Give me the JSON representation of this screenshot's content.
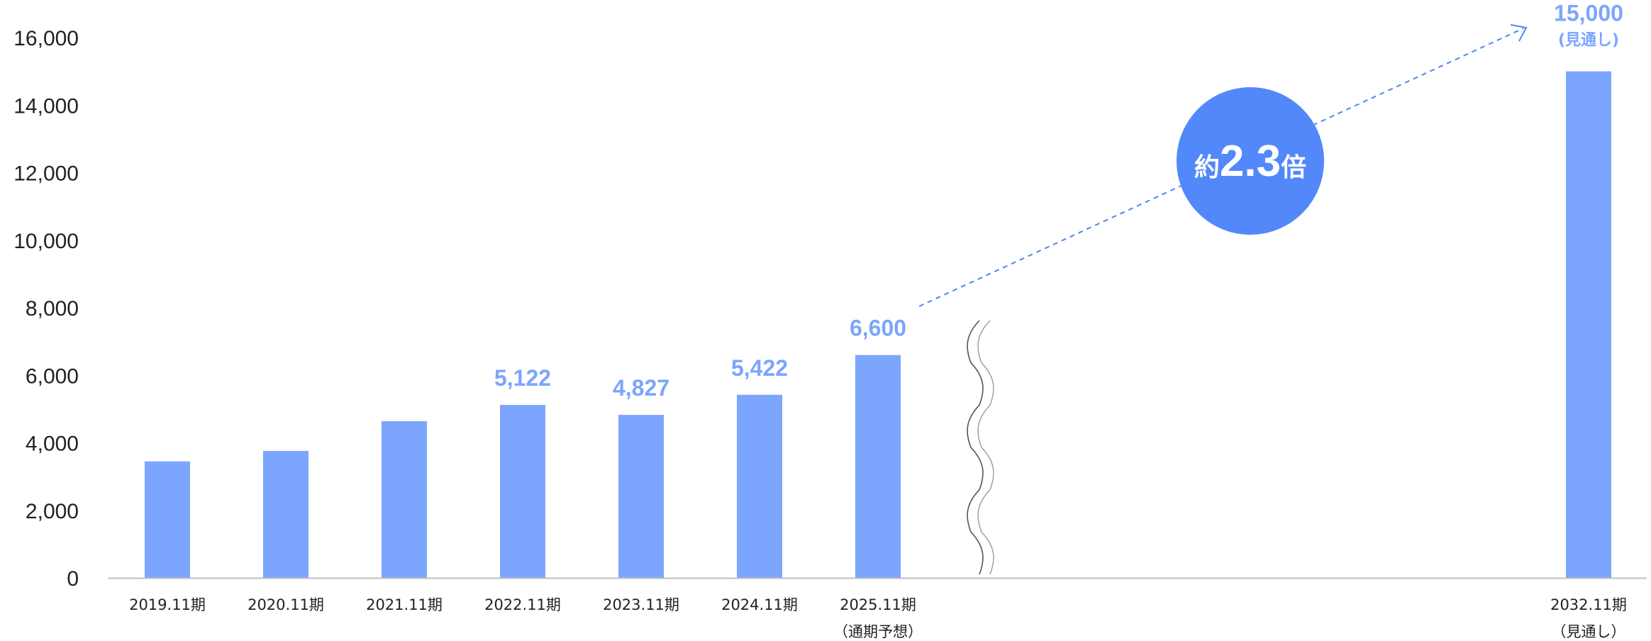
{
  "chart_data": {
    "type": "bar",
    "categories": [
      "2019.11期",
      "2020.11期",
      "2021.11期",
      "2022.11期",
      "2023.11期",
      "2024.11期",
      "2025.11期",
      "2032.11期"
    ],
    "category_sublabels": [
      "",
      "",
      "",
      "",
      "",
      "",
      "（通期予想）",
      "（見通し）"
    ],
    "values": [
      3450,
      3760,
      4640,
      5122,
      4827,
      5422,
      6600,
      15000
    ],
    "data_labels": [
      "",
      "",
      "",
      "5,122",
      "4,827",
      "5,422",
      "6,600",
      "15,000"
    ],
    "data_sublabels": [
      "",
      "",
      "",
      "",
      "",
      "",
      "",
      "(見通し)"
    ],
    "yticks": [
      "0",
      "2,000",
      "4,000",
      "6,000",
      "8,000",
      "10,000",
      "12,000",
      "14,000",
      "16,000"
    ],
    "ylim": [
      0,
      16000
    ],
    "title": "",
    "xlabel": "",
    "ylabel": "",
    "grid": false,
    "axis_break_between": [
      "2025.11期",
      "2032.11期"
    ],
    "annotation": {
      "prefix": "約",
      "value": "2.3",
      "suffix": "倍",
      "from": "2025.11期",
      "to": "2032.11期"
    },
    "colors": {
      "bar": "#7ca5fd",
      "label": "#7ca5fd",
      "badge": "#5388fb",
      "arrow": "#4f86f2",
      "axis": "#bfbfbf",
      "break": "#555555"
    }
  }
}
